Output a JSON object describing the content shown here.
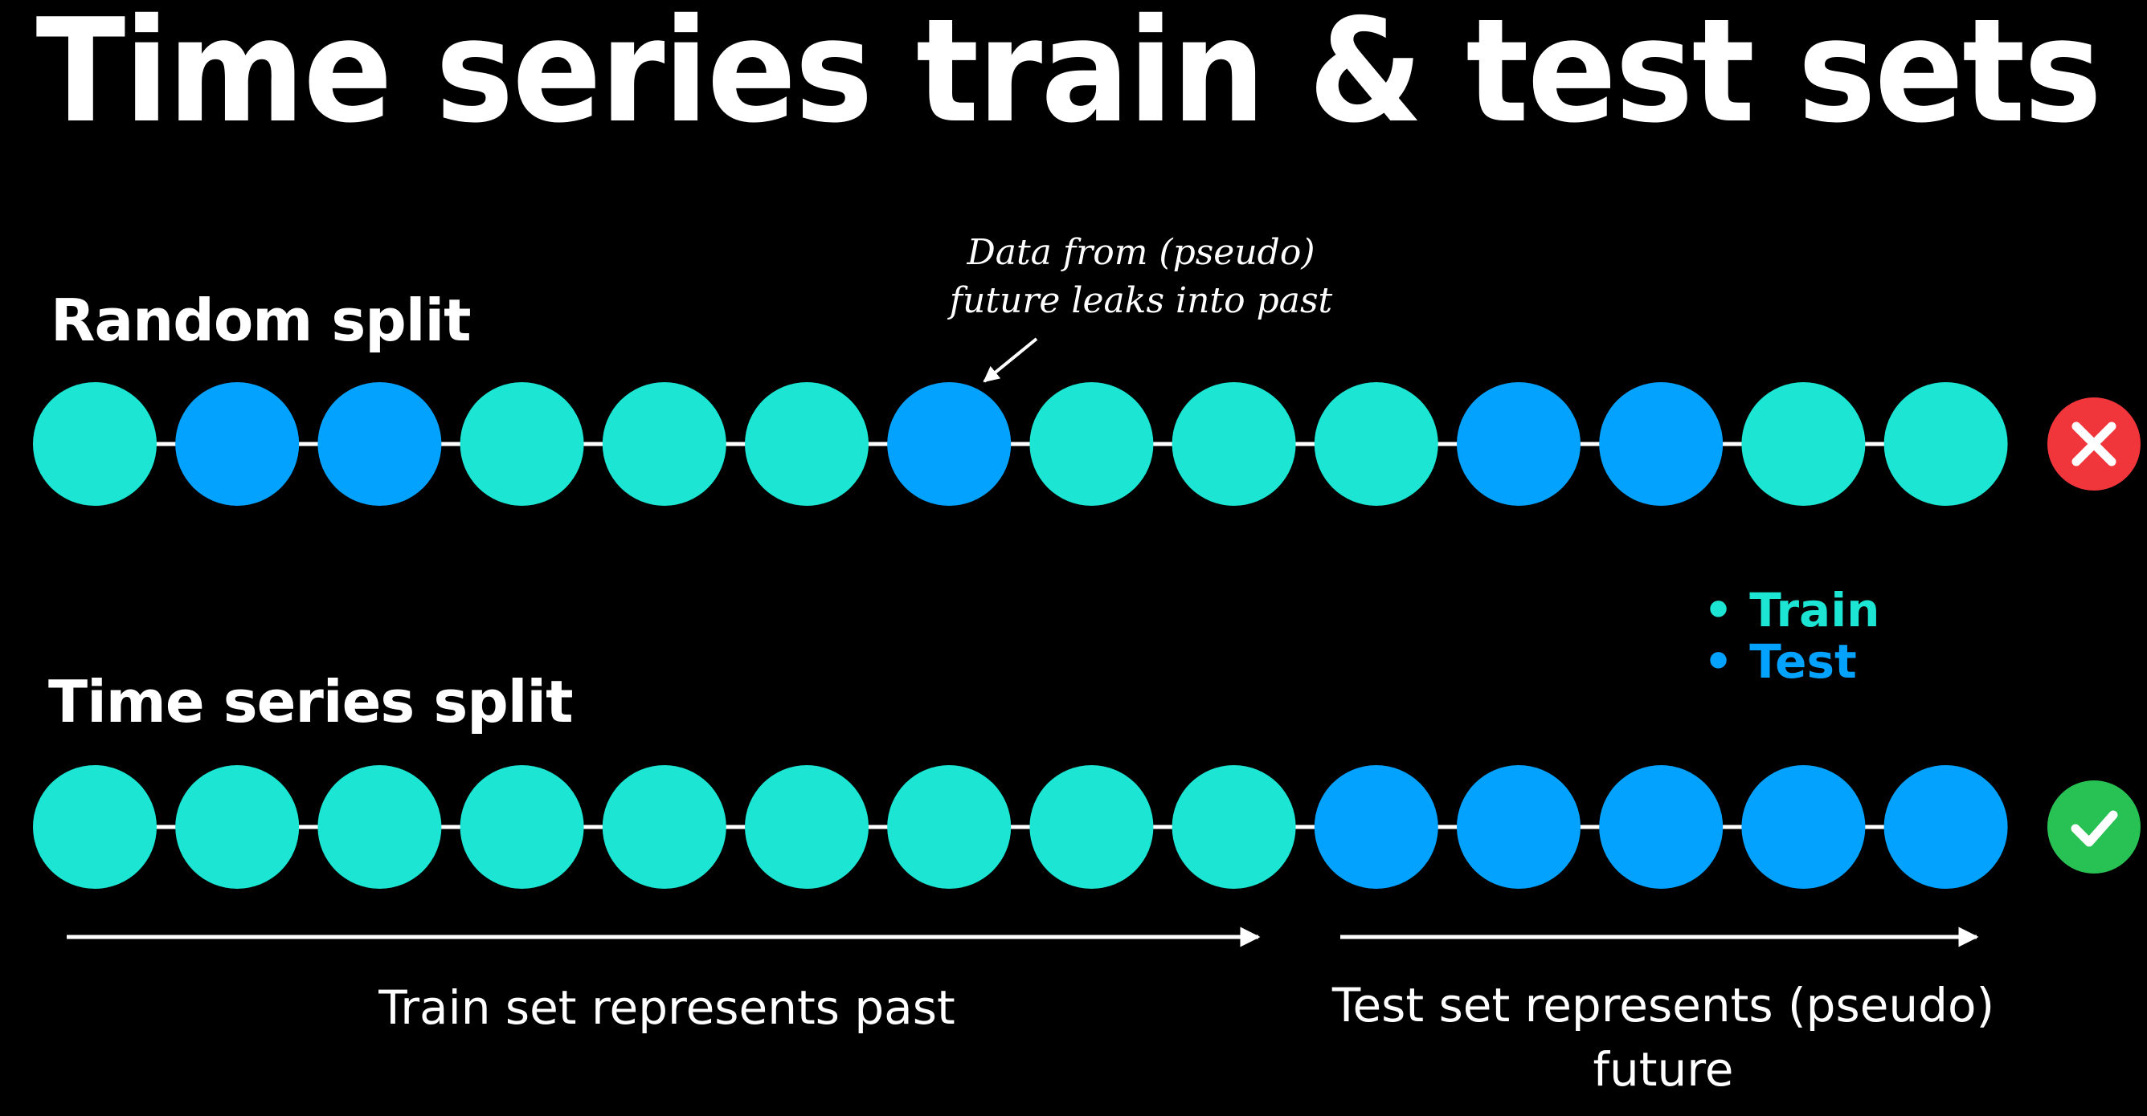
{
  "title": "Time series train & test sets",
  "colors": {
    "background": "#000000",
    "train": "#1ce5d3",
    "test": "#04a2ff",
    "line": "#ffffff",
    "bad_badge": "#f0353b",
    "good_badge": "#28c154"
  },
  "random_split": {
    "label": "Random split",
    "sequence": [
      "train",
      "test",
      "test",
      "train",
      "train",
      "train",
      "test",
      "train",
      "train",
      "train",
      "test",
      "test",
      "train",
      "train"
    ],
    "status_icon": "cross-icon",
    "annotation": [
      "Data from (pseudo)",
      "future leaks into past"
    ]
  },
  "time_series_split": {
    "label": "Time series split",
    "sequence": [
      "train",
      "train",
      "train",
      "train",
      "train",
      "train",
      "train",
      "train",
      "train",
      "test",
      "test",
      "test",
      "test",
      "test"
    ],
    "status_icon": "check-icon"
  },
  "legend": {
    "train_label": "Train",
    "test_label": "Test"
  },
  "captions": {
    "past": "Train set represents past",
    "future_line1": "Test set represents (pseudo)",
    "future_line2": "future"
  }
}
